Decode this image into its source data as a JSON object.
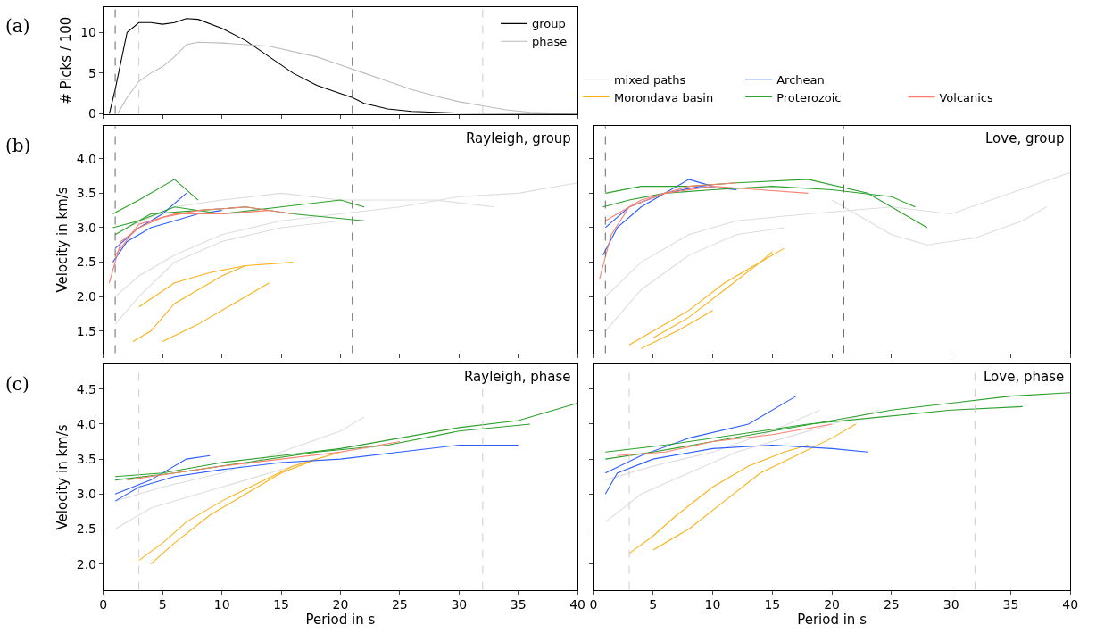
{
  "chart_data": [
    {
      "type": "line",
      "title": "(a)",
      "ylabel": "# Picks / 100",
      "xlim": [
        0,
        40
      ],
      "ylim": [
        0,
        13.1
      ],
      "xticks": [
        0,
        5,
        10,
        15,
        20,
        25,
        30,
        35,
        40
      ],
      "yticks": [
        0,
        5,
        10
      ],
      "tick_labels": "y",
      "grid": false,
      "legend": "top right",
      "line_style": "solid",
      "ref_lines": [
        {
          "axis": "x",
          "value": 1,
          "color": "#666666",
          "line_style": "dashed"
        },
        {
          "axis": "x",
          "value": 3,
          "color": "#cccccc",
          "line_style": "dashed"
        },
        {
          "axis": "x",
          "value": 21,
          "color": "#666666",
          "line_style": "dashed"
        },
        {
          "axis": "x",
          "value": 32,
          "color": "#cccccc",
          "line_style": "dashed"
        }
      ],
      "series": [
        {
          "name": "group",
          "color": "#000000",
          "x": [
            0.5,
            1,
            2,
            3,
            4,
            5,
            6,
            7,
            8,
            10,
            12,
            14,
            16,
            18,
            20,
            21,
            22,
            24,
            26,
            30,
            40
          ],
          "values": [
            0,
            3,
            10,
            11.2,
            11.2,
            11,
            11.2,
            11.7,
            11.6,
            10.5,
            9,
            7,
            5,
            3.5,
            2.5,
            2,
            1.3,
            0.6,
            0.3,
            0.1,
            0
          ]
        },
        {
          "name": "phase",
          "color": "#bbbbbb",
          "x": [
            1.2,
            2,
            3,
            4,
            5,
            6,
            7,
            8,
            10,
            14,
            18,
            20,
            22,
            24,
            26,
            28,
            30,
            32,
            34,
            36,
            40
          ],
          "values": [
            0,
            2,
            4,
            5,
            5.8,
            7,
            8.5,
            8.8,
            8.7,
            8.3,
            7,
            6,
            5,
            4,
            3,
            2.2,
            1.5,
            1,
            0.5,
            0.2,
            0
          ]
        }
      ]
    },
    {
      "type": "line",
      "title": "(b)",
      "ylabel": "Velocity in km/s",
      "annotations": [
        "Rayleigh, group"
      ],
      "xlim": [
        0,
        40
      ],
      "ylim": [
        1.18,
        4.47
      ],
      "xticks": [
        0,
        5,
        10,
        15,
        20,
        25,
        30,
        35,
        40
      ],
      "yticks": [
        1.5,
        {
          "value": 2,
          "label": "2.0"
        },
        2.5,
        {
          "value": 3,
          "label": "3.0"
        },
        3.5,
        {
          "value": 4,
          "label": "4.0"
        }
      ],
      "tick_labels": "y",
      "grid": false,
      "legend": "top",
      "ref_lines": [
        {
          "axis": "x",
          "value": 1,
          "color": "#666666",
          "line_style": "dashed"
        },
        {
          "axis": "x",
          "value": 21,
          "color": "#666666",
          "line_style": "dashed"
        }
      ],
      "series": [
        {
          "name": "mixed paths",
          "color": "#dddddd",
          "x": [
            1,
            3,
            6,
            10,
            15,
            20,
            25,
            30,
            35,
            40
          ],
          "values": [
            2.0,
            2.3,
            2.6,
            2.9,
            3.1,
            3.2,
            3.3,
            3.45,
            3.5,
            3.65
          ]
        },
        {
          "color": "#dddddd",
          "x": [
            1,
            3,
            6,
            10,
            15,
            20
          ],
          "values": [
            1.6,
            2.0,
            2.5,
            2.8,
            3.0,
            3.1
          ]
        },
        {
          "color": "#dddddd",
          "x": [
            2,
            6,
            10,
            15,
            20,
            28,
            33
          ],
          "values": [
            3.0,
            3.3,
            3.4,
            3.5,
            3.4,
            3.4,
            3.3
          ]
        },
        {
          "name": "Morondava basin",
          "color": "#fbb21a",
          "x": [
            2.5,
            4,
            6,
            8,
            10,
            12
          ],
          "values": [
            1.35,
            1.5,
            1.9,
            2.1,
            2.3,
            2.45
          ]
        },
        {
          "color": "#fbb21a",
          "x": [
            3,
            6,
            9,
            12,
            16
          ],
          "values": [
            1.85,
            2.2,
            2.35,
            2.45,
            2.5
          ]
        },
        {
          "color": "#fbb21a",
          "x": [
            5,
            8,
            11,
            14
          ],
          "values": [
            1.35,
            1.6,
            1.9,
            2.2
          ]
        },
        {
          "name": "Archean",
          "color": "#2b5cff",
          "x": [
            0.8,
            2,
            4,
            6,
            8,
            10
          ],
          "values": [
            2.5,
            2.8,
            3.0,
            3.1,
            3.2,
            3.25
          ]
        },
        {
          "color": "#2b5cff",
          "x": [
            1,
            3,
            5,
            7
          ],
          "values": [
            2.7,
            3.0,
            3.2,
            3.5
          ]
        },
        {
          "name": "Proterozoic",
          "color": "#2ca02c",
          "x": [
            0.8,
            3,
            6,
            10,
            15,
            20,
            22
          ],
          "values": [
            3.0,
            3.1,
            3.3,
            3.2,
            3.3,
            3.4,
            3.3
          ]
        },
        {
          "color": "#2ca02c",
          "x": [
            1,
            4,
            8,
            12,
            16,
            22
          ],
          "values": [
            2.9,
            3.2,
            3.25,
            3.3,
            3.2,
            3.1
          ]
        },
        {
          "color": "#2ca02c",
          "x": [
            0.8,
            3,
            6,
            8
          ],
          "values": [
            3.2,
            3.4,
            3.7,
            3.4
          ]
        },
        {
          "name": "Volcanics",
          "color": "#fa8072",
          "x": [
            0.5,
            1.5,
            3,
            5,
            8,
            12,
            16
          ],
          "values": [
            2.2,
            2.8,
            3.0,
            3.15,
            3.25,
            3.3,
            3.2
          ]
        },
        {
          "color": "#fa8072",
          "x": [
            1,
            3,
            6,
            10,
            14
          ],
          "values": [
            2.6,
            3.05,
            3.2,
            3.2,
            3.25
          ]
        }
      ]
    },
    {
      "type": "line",
      "annotations": [
        "Love, group"
      ],
      "xlim": [
        0,
        40
      ],
      "ylim": [
        1.18,
        4.47
      ],
      "xticks": [
        0,
        5,
        10,
        15,
        20,
        25,
        30,
        35,
        40
      ],
      "yticks": [
        1.5,
        2.0,
        2.5,
        3.0,
        3.5,
        4.0
      ],
      "tick_labels": false,
      "grid": false,
      "ref_lines": [
        {
          "axis": "x",
          "value": 1,
          "color": "#666666",
          "line_style": "dashed"
        },
        {
          "axis": "x",
          "value": 21,
          "color": "#666666",
          "line_style": "dashed"
        }
      ],
      "series": [
        {
          "color": "#dddddd",
          "x": [
            1,
            4,
            8,
            12,
            18,
            25,
            30,
            35,
            40
          ],
          "values": [
            2.0,
            2.5,
            2.9,
            3.1,
            3.2,
            3.3,
            3.2,
            3.5,
            3.8
          ]
        },
        {
          "color": "#dddddd",
          "x": [
            20,
            25,
            28,
            32,
            36,
            38
          ],
          "values": [
            3.4,
            2.9,
            2.75,
            2.85,
            3.1,
            3.3
          ]
        },
        {
          "color": "#dddddd",
          "x": [
            1,
            4,
            8,
            12,
            16
          ],
          "values": [
            1.5,
            2.1,
            2.6,
            2.9,
            3.0
          ]
        },
        {
          "color": "#fbb21a",
          "x": [
            3,
            5,
            8,
            11,
            14,
            16
          ],
          "values": [
            1.3,
            1.5,
            1.8,
            2.2,
            2.5,
            2.7
          ]
        },
        {
          "color": "#fbb21a",
          "x": [
            5,
            8,
            11,
            14,
            15
          ],
          "values": [
            1.4,
            1.7,
            2.1,
            2.5,
            2.65
          ]
        },
        {
          "color": "#fbb21a",
          "x": [
            4,
            7,
            10
          ],
          "values": [
            1.25,
            1.5,
            1.8
          ]
        },
        {
          "color": "#2b5cff",
          "x": [
            0.8,
            2,
            4,
            6,
            8,
            10
          ],
          "values": [
            2.6,
            3.0,
            3.3,
            3.5,
            3.7,
            3.6
          ]
        },
        {
          "color": "#2b5cff",
          "x": [
            1,
            3,
            6,
            9,
            12
          ],
          "values": [
            3.0,
            3.3,
            3.5,
            3.6,
            3.55
          ]
        },
        {
          "color": "#2ca02c",
          "x": [
            0.8,
            3,
            6,
            10,
            15,
            20,
            25,
            27
          ],
          "values": [
            3.3,
            3.4,
            3.5,
            3.55,
            3.6,
            3.55,
            3.45,
            3.3
          ]
        },
        {
          "color": "#2ca02c",
          "x": [
            1,
            4,
            8,
            12,
            18,
            23,
            28
          ],
          "values": [
            3.5,
            3.6,
            3.6,
            3.65,
            3.7,
            3.5,
            3.0
          ]
        },
        {
          "color": "#fa8072",
          "x": [
            0.5,
            1.5,
            3,
            6,
            10,
            14,
            18
          ],
          "values": [
            2.25,
            2.9,
            3.3,
            3.5,
            3.6,
            3.55,
            3.5
          ]
        },
        {
          "color": "#fa8072",
          "x": [
            1,
            4,
            8,
            12
          ],
          "values": [
            3.1,
            3.4,
            3.6,
            3.65
          ]
        }
      ]
    },
    {
      "type": "line",
      "title": "(c)",
      "xlabel": "Period in s",
      "ylabel": "Velocity in km/s",
      "annotations": [
        "Rayleigh, phase"
      ],
      "xlim": [
        0,
        40
      ],
      "ylim": [
        1.63,
        4.85
      ],
      "xticks": [
        0,
        5,
        10,
        15,
        20,
        25,
        30,
        35,
        40
      ],
      "yticks": [
        {
          "value": 2,
          "label": "2.0"
        },
        2.5,
        {
          "value": 3,
          "label": "3.0"
        },
        3.5,
        {
          "value": 4,
          "label": "4.0"
        },
        4.5
      ],
      "grid": false,
      "ref_lines": [
        {
          "axis": "x",
          "value": 3,
          "color": "#cccccc",
          "line_style": "dashed"
        },
        {
          "axis": "x",
          "value": 32,
          "color": "#cccccc",
          "line_style": "dashed"
        }
      ],
      "series": [
        {
          "color": "#dddddd",
          "x": [
            1,
            4,
            8,
            12,
            16,
            20,
            24
          ],
          "values": [
            2.5,
            2.8,
            3.0,
            3.2,
            3.4,
            3.6,
            3.7
          ]
        },
        {
          "color": "#dddddd",
          "x": [
            1,
            5,
            10,
            15,
            20,
            22
          ],
          "values": [
            2.9,
            3.1,
            3.3,
            3.6,
            3.9,
            4.1
          ]
        },
        {
          "color": "#fbb21a",
          "x": [
            3,
            5,
            7,
            10,
            13,
            16,
            20
          ],
          "values": [
            2.05,
            2.3,
            2.6,
            2.9,
            3.15,
            3.4,
            3.6
          ]
        },
        {
          "color": "#fbb21a",
          "x": [
            4,
            6,
            9,
            12,
            15,
            18
          ],
          "values": [
            2.0,
            2.3,
            2.7,
            3.0,
            3.3,
            3.5
          ]
        },
        {
          "color": "#2b5cff",
          "x": [
            1,
            3,
            6,
            10,
            15,
            20,
            25,
            30,
            35
          ],
          "values": [
            2.9,
            3.1,
            3.25,
            3.35,
            3.45,
            3.5,
            3.6,
            3.7,
            3.7
          ]
        },
        {
          "color": "#2b5cff",
          "x": [
            1,
            4,
            7,
            9
          ],
          "values": [
            3.0,
            3.2,
            3.5,
            3.55
          ]
        },
        {
          "color": "#2ca02c",
          "x": [
            1,
            5,
            10,
            15,
            20,
            25,
            30,
            35,
            40
          ],
          "values": [
            3.25,
            3.3,
            3.45,
            3.55,
            3.65,
            3.8,
            3.95,
            4.05,
            4.3
          ]
        },
        {
          "color": "#2ca02c",
          "x": [
            1,
            6,
            12,
            18,
            24,
            30,
            36
          ],
          "values": [
            3.2,
            3.3,
            3.45,
            3.6,
            3.7,
            3.9,
            4.0
          ]
        },
        {
          "color": "#fa8072",
          "x": [
            2,
            6,
            10,
            15,
            20,
            25
          ],
          "values": [
            3.2,
            3.3,
            3.4,
            3.5,
            3.6,
            3.75
          ]
        }
      ]
    },
    {
      "type": "line",
      "xlabel": "Period in s",
      "annotations": [
        "Love, phase"
      ],
      "xlim": [
        0,
        40
      ],
      "ylim": [
        1.63,
        4.85
      ],
      "xticks": [
        0,
        5,
        10,
        15,
        20,
        25,
        30,
        35,
        40
      ],
      "yticks": [
        2.0,
        2.5,
        3.0,
        3.5,
        4.0,
        4.5
      ],
      "tick_labels": "x",
      "grid": false,
      "ref_lines": [
        {
          "axis": "x",
          "value": 3,
          "color": "#cccccc",
          "line_style": "dashed"
        },
        {
          "axis": "x",
          "value": 32,
          "color": "#cccccc",
          "line_style": "dashed"
        }
      ],
      "series": [
        {
          "color": "#dddddd",
          "x": [
            1,
            4,
            8,
            12,
            16,
            20,
            24
          ],
          "values": [
            2.6,
            3.0,
            3.3,
            3.6,
            3.8,
            4.0,
            4.2
          ]
        },
        {
          "color": "#dddddd",
          "x": [
            1,
            5,
            10,
            15,
            19
          ],
          "values": [
            3.2,
            3.4,
            3.6,
            3.9,
            4.2
          ]
        },
        {
          "color": "#fbb21a",
          "x": [
            3,
            5,
            7,
            10,
            13,
            16,
            18
          ],
          "values": [
            2.15,
            2.4,
            2.7,
            3.1,
            3.4,
            3.6,
            3.7
          ]
        },
        {
          "color": "#fbb21a",
          "x": [
            5,
            8,
            11,
            14,
            17,
            20,
            22
          ],
          "values": [
            2.2,
            2.5,
            2.9,
            3.3,
            3.55,
            3.8,
            4.0
          ]
        },
        {
          "color": "#2b5cff",
          "x": [
            1,
            2,
            5,
            10,
            15,
            20,
            23
          ],
          "values": [
            3.0,
            3.3,
            3.5,
            3.65,
            3.7,
            3.65,
            3.6
          ]
        },
        {
          "color": "#2b5cff",
          "x": [
            1,
            4,
            8,
            13,
            17
          ],
          "values": [
            3.3,
            3.55,
            3.8,
            4.0,
            4.4
          ]
        },
        {
          "color": "#2ca02c",
          "x": [
            1,
            5,
            10,
            15,
            20,
            25,
            30,
            35,
            40
          ],
          "values": [
            3.5,
            3.6,
            3.75,
            3.9,
            4.05,
            4.2,
            4.3,
            4.4,
            4.45
          ]
        },
        {
          "color": "#2ca02c",
          "x": [
            1,
            6,
            12,
            18,
            24,
            30,
            36
          ],
          "values": [
            3.6,
            3.7,
            3.85,
            4.0,
            4.1,
            4.2,
            4.25
          ]
        },
        {
          "color": "#fa8072",
          "x": [
            2,
            6,
            10,
            15,
            20
          ],
          "values": [
            3.55,
            3.6,
            3.75,
            3.85,
            4.0
          ]
        }
      ]
    }
  ]
}
